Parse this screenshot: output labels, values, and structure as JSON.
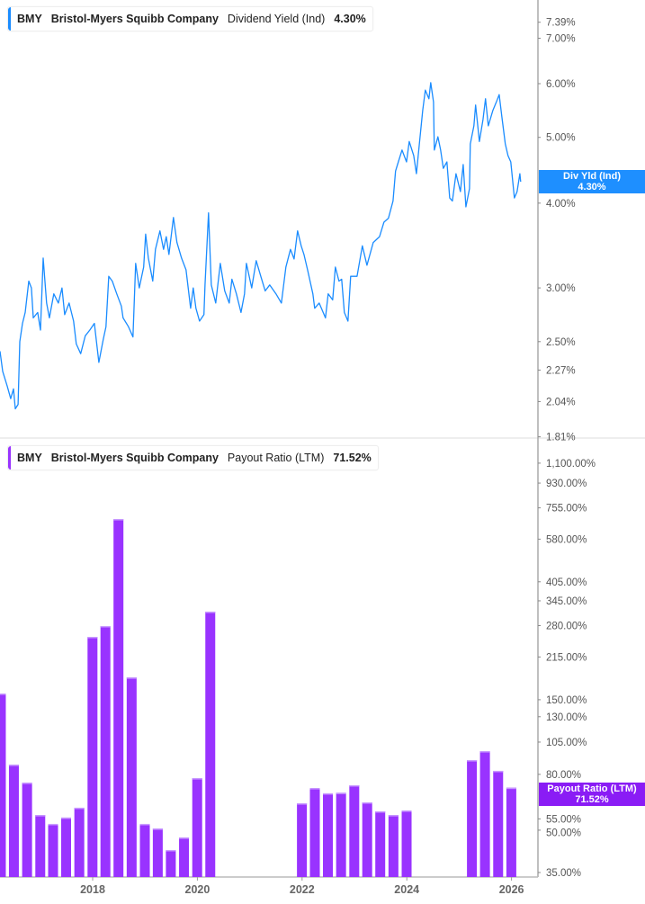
{
  "chart_data": [
    {
      "type": "line",
      "legend": {
        "ticker": "BMY",
        "company": "Bristol-Myers Squibb Company",
        "metric": "Dividend Yield (Ind)",
        "value": "4.30%"
      },
      "badge": {
        "label": "Div Yld (Ind)",
        "value": "4.30%"
      },
      "color": "#1a8cff",
      "y_scale": "log",
      "y_ticks": [
        "7.39%",
        "7.00%",
        "6.00%",
        "5.00%",
        "4.00%",
        "3.00%",
        "2.50%",
        "2.27%",
        "2.04%",
        "1.81%"
      ],
      "y_tick_values": [
        7.39,
        7.0,
        6.0,
        5.0,
        4.0,
        3.0,
        2.5,
        2.27,
        2.04,
        1.81
      ],
      "series": [
        {
          "points": [
            [
              "2016-03-25",
              2.42
            ],
            [
              "2016-04-13",
              2.26
            ],
            [
              "2016-05-14",
              2.15
            ],
            [
              "2016-06-08",
              2.06
            ],
            [
              "2016-06-27",
              2.13
            ],
            [
              "2016-07-10",
              1.99
            ],
            [
              "2016-07-29",
              2.02
            ],
            [
              "2016-08-10",
              2.5
            ],
            [
              "2016-08-29",
              2.66
            ],
            [
              "2016-09-17",
              2.76
            ],
            [
              "2016-10-12",
              3.07
            ],
            [
              "2016-10-30",
              3.0
            ],
            [
              "2016-11-12",
              2.71
            ],
            [
              "2016-12-13",
              2.76
            ],
            [
              "2017-01-02",
              2.6
            ],
            [
              "2017-01-21",
              3.32
            ],
            [
              "2017-02-14",
              2.85
            ],
            [
              "2017-03-05",
              2.71
            ],
            [
              "2017-04-05",
              2.94
            ],
            [
              "2017-05-07",
              2.85
            ],
            [
              "2017-06-01",
              3.0
            ],
            [
              "2017-06-20",
              2.74
            ],
            [
              "2017-07-21",
              2.85
            ],
            [
              "2017-08-21",
              2.68
            ],
            [
              "2017-09-09",
              2.48
            ],
            [
              "2017-10-10",
              2.4
            ],
            [
              "2017-11-11",
              2.55
            ],
            [
              "2017-12-12",
              2.6
            ],
            [
              "2018-01-13",
              2.66
            ],
            [
              "2018-02-13",
              2.33
            ],
            [
              "2018-03-16",
              2.52
            ],
            [
              "2018-04-04",
              2.63
            ],
            [
              "2018-04-23",
              3.12
            ],
            [
              "2018-05-18",
              3.07
            ],
            [
              "2018-06-18",
              2.94
            ],
            [
              "2018-07-20",
              2.82
            ],
            [
              "2018-08-01",
              2.71
            ],
            [
              "2018-09-08",
              2.63
            ],
            [
              "2018-10-09",
              2.54
            ],
            [
              "2018-10-28",
              3.26
            ],
            [
              "2018-11-22",
              3.0
            ],
            [
              "2018-12-23",
              3.22
            ],
            [
              "2019-01-05",
              3.6
            ],
            [
              "2019-01-24",
              3.32
            ],
            [
              "2019-02-24",
              3.07
            ],
            [
              "2019-03-15",
              3.42
            ],
            [
              "2019-04-15",
              3.64
            ],
            [
              "2019-05-10",
              3.42
            ],
            [
              "2019-05-29",
              3.57
            ],
            [
              "2019-06-17",
              3.36
            ],
            [
              "2019-07-18",
              3.81
            ],
            [
              "2019-08-12",
              3.5
            ],
            [
              "2019-09-13",
              3.32
            ],
            [
              "2019-10-14",
              3.19
            ],
            [
              "2019-11-15",
              2.8
            ],
            [
              "2019-12-03",
              3.0
            ],
            [
              "2019-12-22",
              2.8
            ],
            [
              "2020-01-16",
              2.68
            ],
            [
              "2020-02-16",
              2.74
            ],
            [
              "2020-02-23",
              3.03
            ],
            [
              "2020-03-19",
              3.87
            ],
            [
              "2020-04-07",
              3.03
            ],
            [
              "2020-05-08",
              2.85
            ],
            [
              "2020-06-09",
              3.26
            ],
            [
              "2020-07-10",
              2.97
            ],
            [
              "2020-08-10",
              2.85
            ],
            [
              "2020-08-29",
              3.09
            ],
            [
              "2020-09-29",
              2.94
            ],
            [
              "2020-10-31",
              2.76
            ],
            [
              "2020-11-25",
              2.94
            ],
            [
              "2020-12-08",
              3.26
            ],
            [
              "2021-01-15",
              3.0
            ],
            [
              "2021-02-15",
              3.29
            ],
            [
              "2021-03-19",
              3.12
            ],
            [
              "2021-04-19",
              2.97
            ],
            [
              "2021-05-20",
              3.03
            ],
            [
              "2021-07-03",
              2.94
            ],
            [
              "2021-08-10",
              2.85
            ],
            [
              "2021-09-10",
              3.22
            ],
            [
              "2021-10-12",
              3.42
            ],
            [
              "2021-11-06",
              3.31
            ],
            [
              "2021-12-01",
              3.64
            ],
            [
              "2021-12-26",
              3.46
            ],
            [
              "2022-01-14",
              3.36
            ],
            [
              "2022-02-08",
              3.19
            ],
            [
              "2022-03-17",
              2.94
            ],
            [
              "2022-03-30",
              2.8
            ],
            [
              "2022-04-30",
              2.85
            ],
            [
              "2022-06-13",
              2.71
            ],
            [
              "2022-07-02",
              2.94
            ],
            [
              "2022-08-02",
              2.88
            ],
            [
              "2022-08-21",
              3.22
            ],
            [
              "2022-09-15",
              3.07
            ],
            [
              "2022-10-04",
              3.09
            ],
            [
              "2022-10-23",
              2.76
            ],
            [
              "2022-11-17",
              2.68
            ],
            [
              "2022-12-06",
              3.12
            ],
            [
              "2023-01-19",
              3.12
            ],
            [
              "2023-02-25",
              3.46
            ],
            [
              "2023-03-29",
              3.24
            ],
            [
              "2023-05-12",
              3.5
            ],
            [
              "2023-06-25",
              3.57
            ],
            [
              "2023-07-26",
              3.75
            ],
            [
              "2023-08-26",
              3.8
            ],
            [
              "2023-09-27",
              4.03
            ],
            [
              "2023-10-15",
              4.46
            ],
            [
              "2023-11-03",
              4.6
            ],
            [
              "2023-11-29",
              4.79
            ],
            [
              "2023-12-30",
              4.6
            ],
            [
              "2024-01-18",
              4.93
            ],
            [
              "2024-02-18",
              4.7
            ],
            [
              "2024-03-08",
              4.42
            ],
            [
              "2024-04-02",
              5.0
            ],
            [
              "2024-04-21",
              5.48
            ],
            [
              "2024-05-09",
              5.87
            ],
            [
              "2024-06-03",
              5.7
            ],
            [
              "2024-06-16",
              6.02
            ],
            [
              "2024-07-05",
              5.64
            ],
            [
              "2024-07-11",
              4.79
            ],
            [
              "2024-08-05",
              5.01
            ],
            [
              "2024-08-24",
              4.79
            ],
            [
              "2024-09-12",
              4.5
            ],
            [
              "2024-10-07",
              4.6
            ],
            [
              "2024-10-26",
              4.07
            ],
            [
              "2024-11-14",
              4.03
            ],
            [
              "2024-12-09",
              4.42
            ],
            [
              "2025-01-10",
              4.16
            ],
            [
              "2025-01-29",
              4.56
            ],
            [
              "2025-02-17",
              3.95
            ],
            [
              "2025-03-14",
              4.2
            ],
            [
              "2025-03-20",
              4.89
            ],
            [
              "2025-04-14",
              5.2
            ],
            [
              "2025-04-26",
              5.58
            ],
            [
              "2025-05-22",
              4.93
            ],
            [
              "2025-06-16",
              5.31
            ],
            [
              "2025-07-04",
              5.7
            ],
            [
              "2025-07-23",
              5.2
            ],
            [
              "2025-08-24",
              5.48
            ],
            [
              "2025-09-18",
              5.64
            ],
            [
              "2025-10-07",
              5.78
            ],
            [
              "2025-10-26",
              5.36
            ],
            [
              "2025-11-19",
              4.89
            ],
            [
              "2025-12-08",
              4.7
            ],
            [
              "2025-12-27",
              4.6
            ],
            [
              "2026-01-21",
              4.07
            ],
            [
              "2026-02-09",
              4.16
            ],
            [
              "2026-02-28",
              4.42
            ],
            [
              "2026-03-06",
              4.3
            ]
          ]
        }
      ]
    },
    {
      "type": "bar",
      "legend": {
        "ticker": "BMY",
        "company": "Bristol-Myers Squibb Company",
        "metric": "Payout Ratio (LTM)",
        "value": "71.52%"
      },
      "badge": {
        "label": "Payout Ratio (LTM)",
        "value": "71.52%"
      },
      "color": "#9933ff",
      "y_scale": "log",
      "y_ticks": [
        "1,100.00%",
        "930.00%",
        "755.00%",
        "580.00%",
        "405.00%",
        "345.00%",
        "280.00%",
        "215.00%",
        "150.00%",
        "130.00%",
        "105.00%",
        "80.00%",
        "55.00%",
        "50.00%",
        "35.00%"
      ],
      "y_tick_values": [
        1100,
        930,
        755,
        580,
        405,
        345,
        280,
        215,
        150,
        130,
        105,
        80,
        55,
        50,
        35
      ],
      "x_ticks": [
        "2018",
        "2020",
        "2022",
        "2024",
        "2026"
      ],
      "bars": [
        [
          "2016-03-31",
          158
        ],
        [
          "2016-06-30",
          86.8
        ],
        [
          "2016-09-30",
          74.6
        ],
        [
          "2016-12-31",
          56.8
        ],
        [
          "2017-03-31",
          52.7
        ],
        [
          "2017-06-30",
          55.6
        ],
        [
          "2017-09-30",
          60.4
        ],
        [
          "2017-12-31",
          254.7
        ],
        [
          "2018-03-31",
          279
        ],
        [
          "2018-06-30",
          687
        ],
        [
          "2018-09-30",
          181
        ],
        [
          "2018-12-31",
          52.7
        ],
        [
          "2019-03-31",
          50.7
        ],
        [
          "2019-06-30",
          42.3
        ],
        [
          "2019-09-30",
          47.0
        ],
        [
          "2019-12-31",
          77.5
        ],
        [
          "2020-03-31",
          315
        ],
        [
          "2021-12-31",
          62.7
        ],
        [
          "2022-03-31",
          71.3
        ],
        [
          "2022-06-30",
          68.2
        ],
        [
          "2022-09-30",
          68.5
        ],
        [
          "2022-12-31",
          73.0
        ],
        [
          "2023-03-31",
          63.2
        ],
        [
          "2023-06-30",
          58.6
        ],
        [
          "2023-09-30",
          56.8
        ],
        [
          "2023-12-31",
          59.0
        ],
        [
          "2025-03-31",
          90.2
        ],
        [
          "2025-06-30",
          97.3
        ],
        [
          "2025-09-30",
          82.4
        ],
        [
          "2025-12-31",
          71.52
        ]
      ]
    }
  ]
}
